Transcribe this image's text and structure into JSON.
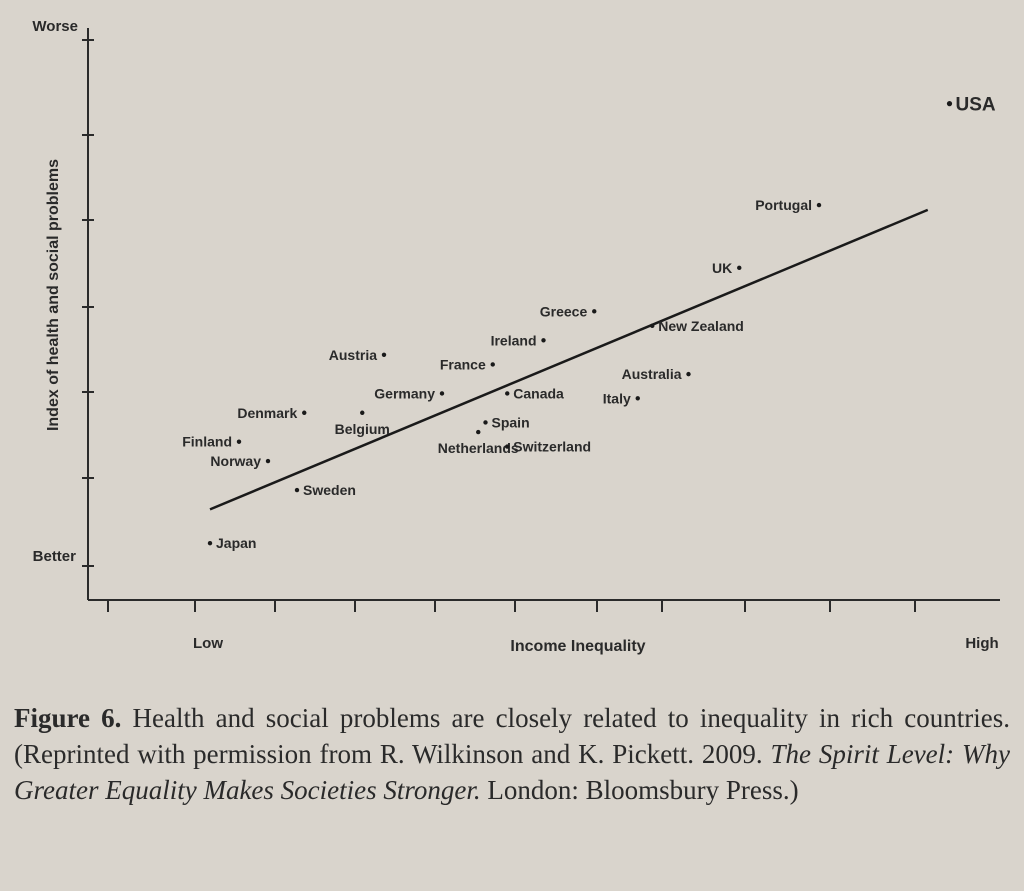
{
  "chart_data": {
    "type": "scatter",
    "x_axis": {
      "title": "Income Inequality",
      "low_label": "Low",
      "high_label": "High",
      "range": [
        0,
        10
      ]
    },
    "y_axis": {
      "title": "Index of health and social problems",
      "low_label": "Better",
      "high_label": "Worse",
      "range": [
        0,
        10
      ]
    },
    "points": [
      {
        "label": "Japan",
        "x": 0.0,
        "y": 0.1
      },
      {
        "label": "Finland",
        "x": 0.4,
        "y": 2.2
      },
      {
        "label": "Norway",
        "x": 0.8,
        "y": 1.8
      },
      {
        "label": "Denmark",
        "x": 1.3,
        "y": 2.8
      },
      {
        "label": "Sweden",
        "x": 1.2,
        "y": 1.2
      },
      {
        "label": "Belgium",
        "x": 2.1,
        "y": 2.8
      },
      {
        "label": "Austria",
        "x": 2.4,
        "y": 4.0
      },
      {
        "label": "Germany",
        "x": 3.2,
        "y": 3.2
      },
      {
        "label": "Netherlands",
        "x": 3.7,
        "y": 2.4
      },
      {
        "label": "Spain",
        "x": 3.8,
        "y": 2.6
      },
      {
        "label": "France",
        "x": 3.9,
        "y": 3.8
      },
      {
        "label": "Canada",
        "x": 4.1,
        "y": 3.2
      },
      {
        "label": "Switzerland",
        "x": 4.1,
        "y": 2.1
      },
      {
        "label": "Ireland",
        "x": 4.6,
        "y": 4.3
      },
      {
        "label": "Greece",
        "x": 5.3,
        "y": 4.9
      },
      {
        "label": "New Zealand",
        "x": 6.1,
        "y": 4.6
      },
      {
        "label": "Australia",
        "x": 6.6,
        "y": 3.6
      },
      {
        "label": "Italy",
        "x": 5.9,
        "y": 3.1
      },
      {
        "label": "UK",
        "x": 7.3,
        "y": 5.8
      },
      {
        "label": "Portugal",
        "x": 8.4,
        "y": 7.1
      },
      {
        "label": "USA",
        "x": 10.2,
        "y": 9.2
      }
    ],
    "trend_line": {
      "x": [
        0.0,
        9.9
      ],
      "y": [
        0.8,
        7.0
      ]
    },
    "grid": false,
    "legend": "none"
  },
  "caption": {
    "figure_label": "Figure 6.",
    "text_main": " Health and social problems are closely related to inequality in rich countries. (Reprinted with permission from R. Wilkinson and K. Pickett. 2009. ",
    "book_title": "The Spirit Level: Why Greater Equality Makes Societies Stronger.",
    "text_end": " London: Bloomsbury Press.)"
  }
}
